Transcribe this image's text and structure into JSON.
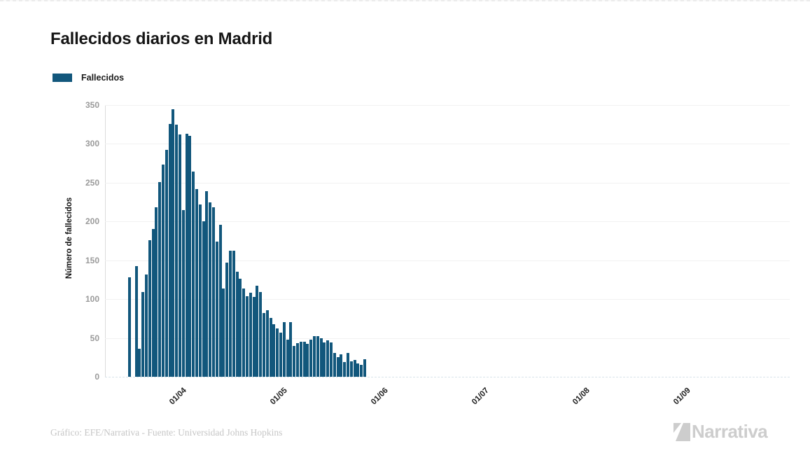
{
  "title": "Fallecidos diarios en Madrid",
  "legend": {
    "label": "Fallecidos",
    "color": "#12577c"
  },
  "y_axis_label": "Número de fallecidos",
  "footer_credit": "Gráfico: EFE/Narrativa - Fuente: Universidad Johns Hopkins",
  "brand": {
    "name": "Narrativa"
  },
  "chart_data": {
    "type": "bar",
    "title": "Fallecidos diarios en Madrid",
    "xlabel": "",
    "ylabel": "Número de fallecidos",
    "ylim": [
      0,
      350
    ],
    "y_ticks": [
      0,
      50,
      100,
      150,
      200,
      250,
      300,
      350
    ],
    "x_tick_labels": [
      "01/04",
      "01/05",
      "01/06",
      "01/07",
      "01/08",
      "01/09"
    ],
    "grid": "horizontal",
    "legend_position": "top-left",
    "x_note": "one bar per day, from mid-March to late May (values estimated from pixels)",
    "series": [
      {
        "name": "Fallecidos",
        "color": "#12577c",
        "values": [
          128,
          0,
          143,
          36,
          109,
          132,
          176,
          190,
          218,
          251,
          273,
          292,
          326,
          345,
          325,
          312,
          215,
          313,
          310,
          264,
          242,
          222,
          200,
          239,
          225,
          218,
          174,
          196,
          114,
          147,
          162,
          162,
          135,
          126,
          114,
          104,
          108,
          103,
          117,
          109,
          82,
          86,
          76,
          68,
          62,
          57,
          70,
          48,
          70,
          40,
          43,
          45,
          45,
          42,
          48,
          52,
          52,
          50,
          44,
          47,
          44,
          31,
          25,
          29,
          19,
          31,
          20,
          22,
          17,
          15,
          23
        ]
      }
    ]
  }
}
